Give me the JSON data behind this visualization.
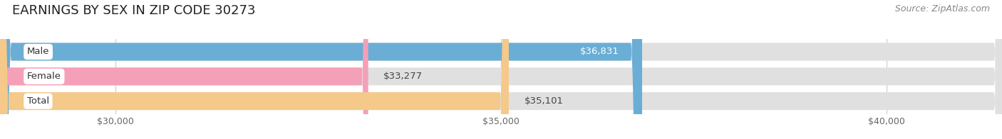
{
  "title": "EARNINGS BY SEX IN ZIP CODE 30273",
  "source": "Source: ZipAtlas.com",
  "categories": [
    "Male",
    "Female",
    "Total"
  ],
  "values": [
    36831,
    33277,
    35101
  ],
  "bar_colors": [
    "#6aaed6",
    "#f4a0b8",
    "#f5c98a"
  ],
  "bar_bg_color": "#e0e0e0",
  "bar_labels": [
    "$36,831",
    "$33,277",
    "$35,101"
  ],
  "label_inside": [
    true,
    false,
    false
  ],
  "xmin": 28500,
  "xmax": 41500,
  "xticks": [
    30000,
    35000,
    40000
  ],
  "xtick_labels": [
    "$30,000",
    "$35,000",
    "$40,000"
  ],
  "background_color": "#ffffff",
  "title_fontsize": 13,
  "source_fontsize": 9,
  "label_fontsize": 9.5,
  "tick_fontsize": 9
}
